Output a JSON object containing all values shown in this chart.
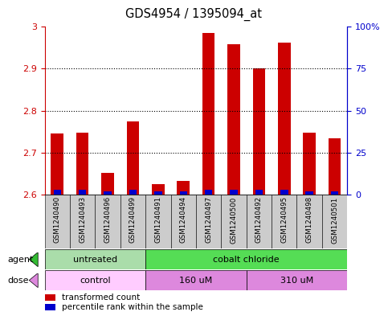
{
  "title": "GDS4954 / 1395094_at",
  "samples": [
    "GSM1240490",
    "GSM1240493",
    "GSM1240496",
    "GSM1240499",
    "GSM1240491",
    "GSM1240494",
    "GSM1240497",
    "GSM1240500",
    "GSM1240492",
    "GSM1240495",
    "GSM1240498",
    "GSM1240501"
  ],
  "red_values": [
    2.745,
    2.748,
    2.652,
    2.775,
    2.625,
    2.632,
    2.985,
    2.958,
    2.9,
    2.963,
    2.748,
    2.733
  ],
  "blue_values": [
    0.01,
    0.01,
    0.008,
    0.01,
    0.007,
    0.007,
    0.01,
    0.01,
    0.01,
    0.01,
    0.008,
    0.008
  ],
  "ylim_left": [
    2.6,
    3.0
  ],
  "ylim_right": [
    0,
    100
  ],
  "yticks_left": [
    2.6,
    2.7,
    2.8,
    2.9,
    3.0
  ],
  "ytick_labels_left": [
    "2.6",
    "2.7",
    "2.8",
    "2.9",
    "3"
  ],
  "yticks_right": [
    0,
    25,
    50,
    75,
    100
  ],
  "ytick_labels_right": [
    "0",
    "25",
    "50",
    "75",
    "100%"
  ],
  "agent_groups": [
    {
      "label": "untreated",
      "start": 0,
      "end": 4,
      "color": "#aaddaa"
    },
    {
      "label": "cobalt chloride",
      "start": 4,
      "end": 12,
      "color": "#55dd55"
    }
  ],
  "dose_groups": [
    {
      "label": "control",
      "start": 0,
      "end": 4,
      "color": "#ffccff"
    },
    {
      "label": "160 uM",
      "start": 4,
      "end": 8,
      "color": "#dd88dd"
    },
    {
      "label": "310 uM",
      "start": 8,
      "end": 12,
      "color": "#dd88dd"
    }
  ],
  "bar_color_red": "#cc0000",
  "bar_color_blue": "#0000cc",
  "bar_width": 0.5,
  "blue_bar_width": 0.3,
  "plot_bg_color": "#ffffff",
  "left_tick_color": "#cc0000",
  "right_tick_color": "#0000cc",
  "base_value": 2.6,
  "sample_box_color": "#cccccc",
  "grid_color": "black",
  "grid_linestyle": "dotted",
  "grid_linewidth": 0.8,
  "legend_red_label": "transformed count",
  "legend_blue_label": "percentile rank within the sample",
  "agent_row_label": "agent",
  "dose_row_label": "dose"
}
